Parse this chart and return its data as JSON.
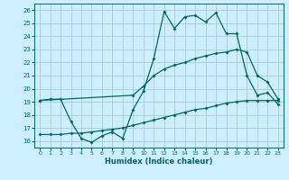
{
  "xlabel": "Humidex (Indice chaleur)",
  "bg_color": "#cceeff",
  "grid_color": "#aacccc",
  "line_color": "#006666",
  "xlim": [
    -0.5,
    23.5
  ],
  "ylim": [
    15.5,
    26.5
  ],
  "xticks": [
    0,
    1,
    2,
    3,
    4,
    5,
    6,
    7,
    8,
    9,
    10,
    11,
    12,
    13,
    14,
    15,
    16,
    17,
    18,
    19,
    20,
    21,
    22,
    23
  ],
  "yticks": [
    16,
    17,
    18,
    19,
    20,
    21,
    22,
    23,
    24,
    25,
    26
  ],
  "line1_x": [
    0,
    1,
    2,
    3,
    4,
    5,
    6,
    7,
    8,
    9,
    10,
    11,
    12,
    13,
    14,
    15,
    16,
    17,
    18,
    19,
    20,
    21,
    22,
    23
  ],
  "line1_y": [
    19.1,
    19.2,
    19.2,
    17.5,
    16.2,
    15.9,
    16.4,
    16.7,
    16.2,
    18.4,
    19.8,
    22.3,
    25.9,
    24.6,
    25.5,
    25.6,
    25.1,
    25.8,
    24.2,
    24.2,
    21.0,
    19.5,
    19.7,
    18.8
  ],
  "line2_x": [
    0,
    9,
    10,
    11,
    12,
    13,
    14,
    15,
    16,
    17,
    18,
    19,
    20,
    21,
    22,
    23
  ],
  "line2_y": [
    19.1,
    19.5,
    20.2,
    21.0,
    21.5,
    21.8,
    22.0,
    22.3,
    22.5,
    22.7,
    22.8,
    23.0,
    22.8,
    21.0,
    20.5,
    19.2
  ],
  "line3_x": [
    0,
    1,
    2,
    3,
    4,
    5,
    6,
    7,
    8,
    9,
    10,
    11,
    12,
    13,
    14,
    15,
    16,
    17,
    18,
    19,
    20,
    21,
    22,
    23
  ],
  "line3_y": [
    16.5,
    16.5,
    16.5,
    16.6,
    16.6,
    16.7,
    16.8,
    16.9,
    17.0,
    17.2,
    17.4,
    17.6,
    17.8,
    18.0,
    18.2,
    18.4,
    18.5,
    18.7,
    18.9,
    19.0,
    19.1,
    19.1,
    19.1,
    19.1
  ]
}
